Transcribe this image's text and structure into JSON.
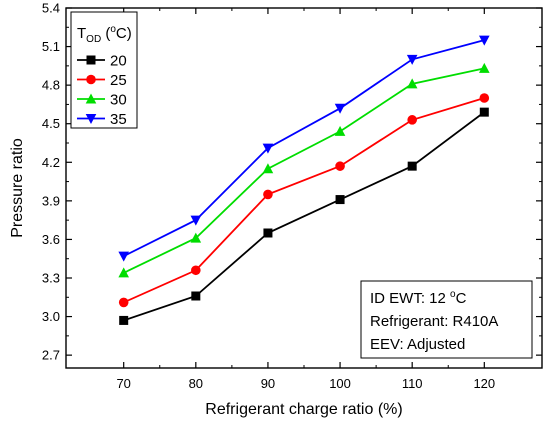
{
  "chart_data": {
    "type": "line",
    "xlabel": "Refrigerant charge ratio (%)",
    "ylabel": "Pressure ratio",
    "x": [
      70,
      80,
      90,
      100,
      110,
      120
    ],
    "xlim": [
      62,
      128
    ],
    "ylim": [
      2.6,
      5.4
    ],
    "xticks": [
      70,
      80,
      90,
      100,
      110,
      120
    ],
    "yticks": [
      "2.7",
      "3.0",
      "3.3",
      "3.6",
      "3.9",
      "4.2",
      "4.5",
      "4.8",
      "5.1",
      "5.4"
    ],
    "grid": false,
    "legend": {
      "position": "top-left",
      "title_main": "T",
      "title_sub": "OD",
      "title_rest": " (",
      "title_sup": "o",
      "title_end": "C)"
    },
    "series": [
      {
        "name": "20",
        "color": "#000000",
        "marker": "square",
        "values": [
          2.97,
          3.16,
          3.65,
          3.91,
          4.17,
          4.59
        ]
      },
      {
        "name": "25",
        "color": "#ff0000",
        "marker": "circle",
        "values": [
          3.11,
          3.36,
          3.95,
          4.17,
          4.53,
          4.7
        ]
      },
      {
        "name": "30",
        "color": "#00dd00",
        "marker": "triangle-up",
        "values": [
          3.34,
          3.61,
          4.15,
          4.44,
          4.81,
          4.93
        ]
      },
      {
        "name": "35",
        "color": "#0000ff",
        "marker": "triangle-down",
        "values": [
          3.47,
          3.75,
          4.31,
          4.62,
          5.0,
          5.15
        ]
      }
    ],
    "annotation": {
      "line1_pre": "ID EWT: 12 ",
      "line1_sup": "o",
      "line1_post": "C",
      "line2": "Refrigerant: R410A",
      "line3": "EEV: Adjusted"
    }
  }
}
